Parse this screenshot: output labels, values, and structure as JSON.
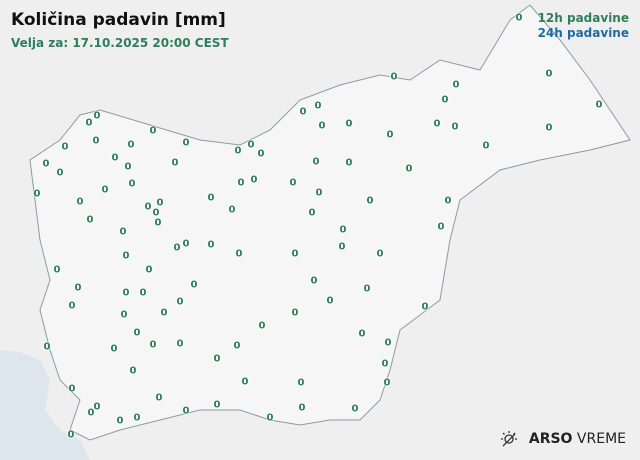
{
  "title": "Količina padavin [mm]",
  "subtitle": "Velja za: 17.10.2025 20:00 CEST",
  "legend": {
    "h12": "12h padavine",
    "h24": "24h padavine",
    "h12_color": "#2e7d5b",
    "h24_color": "#1f6aa5"
  },
  "logo": {
    "brand": "ARSO",
    "product": "VREME",
    "icon": "sun-cloud-icon"
  },
  "stations": {
    "value": "0",
    "count_shown": 104
  }
}
